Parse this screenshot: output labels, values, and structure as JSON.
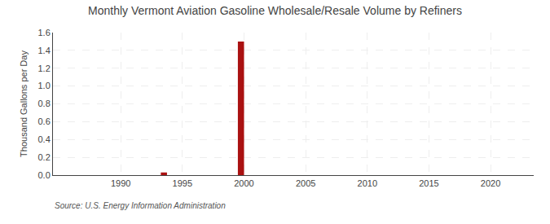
{
  "chart_data": {
    "type": "bar",
    "title": "Monthly Vermont Aviation Gasoline Wholesale/Resale Volume by Refiners",
    "ylabel": "Thousand Gallons per Day",
    "annotations": [
      "Source: U.S. Energy Information Administration"
    ],
    "x": [
      1993.5,
      1999.75
    ],
    "values": [
      0.03,
      1.5
    ],
    "color": "#aa1111",
    "xlim": [
      1984.5,
      2023.5
    ],
    "xticks": [
      1990,
      1995,
      2000,
      2005,
      2010,
      2015,
      2020
    ],
    "ylim": [
      0.0,
      1.6
    ],
    "yticks": [
      {
        "value": 0.0,
        "label": "0.0"
      },
      0.2,
      0.4,
      0.6,
      0.8,
      {
        "value": 1.0,
        "label": "1.0"
      },
      1.2,
      1.4,
      1.6
    ],
    "grid": true
  }
}
